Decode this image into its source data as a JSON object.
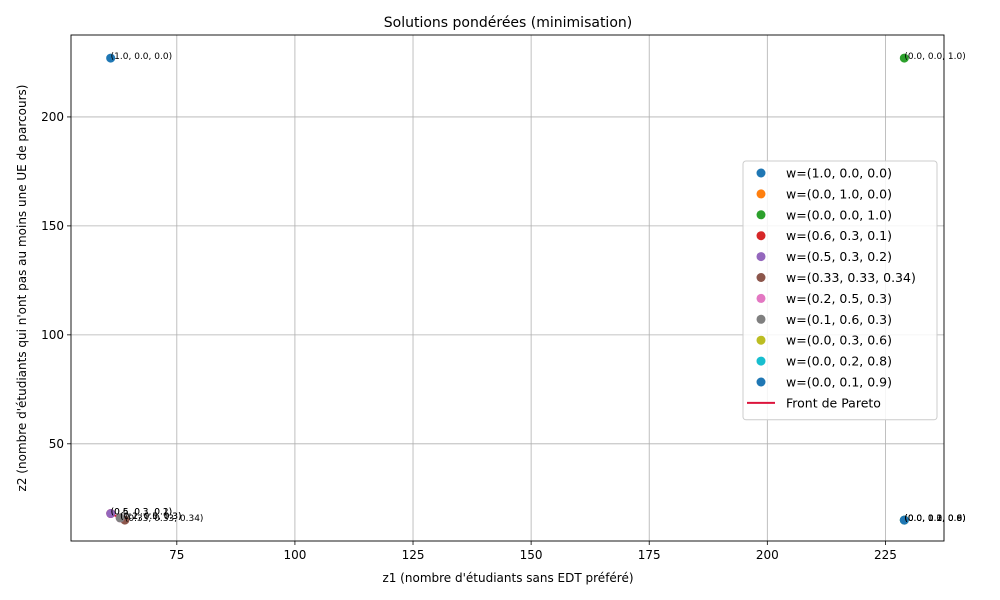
{
  "chart_data": {
    "type": "scatter",
    "title": "Solutions pondérées (minimisation)",
    "xlabel": "z1 (nombre d'étudiants sans EDT préféré)",
    "ylabel": "z2 (nombre d'étudiants qui n'ont pas au moins une UE de parcours)",
    "xlim": [
      52.6,
      237.4
    ],
    "ylim": [
      5.4,
      237.6
    ],
    "xticks": [
      75,
      100,
      125,
      150,
      175,
      200,
      225
    ],
    "yticks": [
      50,
      100,
      150,
      200
    ],
    "grid": true,
    "legend_position": "center-right",
    "series": [
      {
        "name": "w=(1.0, 0.0, 0.0)",
        "color": "#1f77b4",
        "x": 61,
        "y": 227,
        "label": "(1.0, 0.0, 0.0)"
      },
      {
        "name": "w=(0.0, 1.0, 0.0)",
        "color": "#ff7f0e",
        "x": 229,
        "y": 15,
        "label": "(0.0, 1.0, 0.0)"
      },
      {
        "name": "w=(0.0, 0.0, 1.0)",
        "color": "#2ca02c",
        "x": 229,
        "y": 227,
        "label": "(0.0, 0.0, 1.0)"
      },
      {
        "name": "w=(0.6, 0.3, 0.1)",
        "color": "#d62728",
        "x": 61,
        "y": 18,
        "label": "(0.6, 0.3, 0.1)"
      },
      {
        "name": "w=(0.5, 0.3, 0.2)",
        "color": "#9467bd",
        "x": 61,
        "y": 18,
        "label": "(0.5, 0.3, 0.2)"
      },
      {
        "name": "w=(0.33, 0.33, 0.34)",
        "color": "#8c564b",
        "x": 64,
        "y": 15,
        "label": "(0.33, 0.33, 0.34)"
      },
      {
        "name": "w=(0.2, 0.5, 0.3)",
        "color": "#e377c2",
        "x": 63,
        "y": 16,
        "label": "(0.2, 0.5, 0.3)"
      },
      {
        "name": "w=(0.1, 0.6, 0.3)",
        "color": "#7f7f7f",
        "x": 63,
        "y": 16,
        "label": "(0.1, 0.6, 0.3)"
      },
      {
        "name": "w=(0.0, 0.3, 0.6)",
        "color": "#bcbd22",
        "x": 229,
        "y": 15,
        "label": "(0.0, 0.3, 0.6)"
      },
      {
        "name": "w=(0.0, 0.2, 0.8)",
        "color": "#17becf",
        "x": 229,
        "y": 15,
        "label": "(0.0, 0.2, 0.8)"
      },
      {
        "name": "w=(0.0, 0.1, 0.9)",
        "color": "#1f77b4",
        "x": 229,
        "y": 15,
        "label": "(0.0, 0.1, 0.9)"
      }
    ],
    "pareto_front": {
      "name": "Front de Pareto",
      "color": "#dc143c",
      "x": [
        61,
        63,
        64
      ],
      "y": [
        18,
        16,
        15
      ]
    }
  }
}
